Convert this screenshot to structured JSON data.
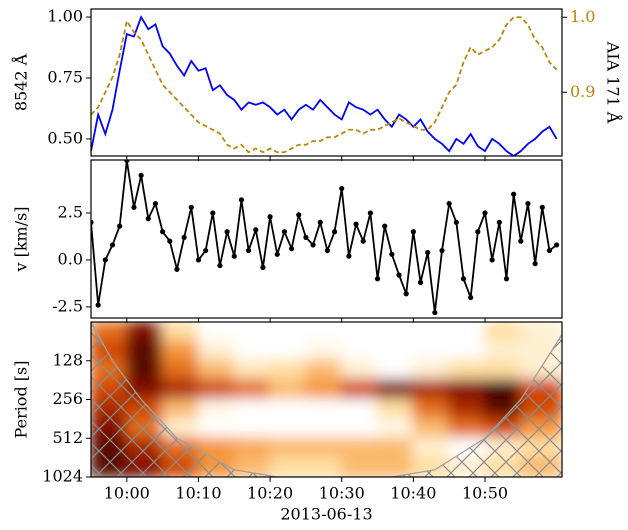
{
  "chart_data": [
    {
      "type": "line",
      "xlim": [
        "09:55:00",
        "11:00:45"
      ],
      "ylim": [
        0.43,
        1.033
      ],
      "yticks": [
        {
          "value": 1.0,
          "label": "1.00"
        },
        {
          "value": 0.75,
          "label": "0.75"
        },
        {
          "value": 0.5,
          "label": "0.50"
        }
      ],
      "y2lim": [
        0.815,
        1.011
      ],
      "y2ticks": [
        {
          "value": 1.0,
          "label": "1.0"
        },
        0.9
      ],
      "ylabel": "8542 Å",
      "y2label": "AIA 171 Å",
      "x": [
        "09:55",
        "09:56",
        "09:57",
        "09:58",
        "09:59",
        "10:00",
        "10:01",
        "10:02",
        "10:03",
        "10:04",
        "10:05",
        "10:06",
        "10:07",
        "10:08",
        "10:09",
        "10:10",
        "10:11",
        "10:12",
        "10:13",
        "10:14",
        "10:15",
        "10:16",
        "10:17",
        "10:18",
        "10:19",
        "10:20",
        "10:21",
        "10:22",
        "10:23",
        "10:24",
        "10:25",
        "10:26",
        "10:27",
        "10:28",
        "10:29",
        "10:30",
        "10:31",
        "10:32",
        "10:33",
        "10:34",
        "10:35",
        "10:36",
        "10:37",
        "10:38",
        "10:39",
        "10:40",
        "10:41",
        "10:42",
        "10:43",
        "10:44",
        "10:45",
        "10:46",
        "10:47",
        "10:48",
        "10:49",
        "10:50",
        "10:51",
        "10:52",
        "10:53",
        "10:54",
        "10:55",
        "10:56",
        "10:57",
        "10:58",
        "10:59",
        "11:00"
      ],
      "series": [
        {
          "color": "#0000ff",
          "linestyle": "solid",
          "values": [
            0.45,
            0.6,
            0.52,
            0.62,
            0.78,
            0.93,
            0.92,
            1.0,
            0.95,
            0.97,
            0.88,
            0.85,
            0.8,
            0.76,
            0.82,
            0.78,
            0.79,
            0.7,
            0.72,
            0.68,
            0.66,
            0.62,
            0.65,
            0.64,
            0.65,
            0.63,
            0.6,
            0.62,
            0.58,
            0.62,
            0.64,
            0.62,
            0.66,
            0.63,
            0.6,
            0.58,
            0.65,
            0.63,
            0.62,
            0.6,
            0.62,
            0.58,
            0.55,
            0.6,
            0.58,
            0.55,
            0.58,
            0.53,
            0.5,
            0.48,
            0.45,
            0.5,
            0.48,
            0.52,
            0.47,
            0.45,
            0.5,
            0.48,
            0.45,
            0.43,
            0.45,
            0.48,
            0.5,
            0.53,
            0.55,
            0.5
          ]
        },
        {
          "color": "#b8860b",
          "linestyle": "dashed",
          "axis": "y2",
          "values": [
            0.87,
            0.88,
            0.9,
            0.92,
            0.95,
            0.995,
            0.98,
            0.97,
            0.95,
            0.93,
            0.91,
            0.9,
            0.89,
            0.88,
            0.87,
            0.86,
            0.855,
            0.85,
            0.845,
            0.83,
            0.825,
            0.83,
            0.82,
            0.825,
            0.82,
            0.825,
            0.82,
            0.82,
            0.825,
            0.83,
            0.83,
            0.835,
            0.835,
            0.84,
            0.84,
            0.845,
            0.85,
            0.85,
            0.845,
            0.85,
            0.85,
            0.855,
            0.86,
            0.865,
            0.86,
            0.855,
            0.85,
            0.85,
            0.86,
            0.88,
            0.9,
            0.91,
            0.94,
            0.96,
            0.95,
            0.955,
            0.96,
            0.97,
            0.99,
            1.0,
            1.0,
            0.99,
            0.97,
            0.96,
            0.94,
            0.93
          ]
        }
      ]
    },
    {
      "type": "line",
      "markers": true,
      "xlim": [
        "09:55:00",
        "11:00:45"
      ],
      "ylim": [
        -3.09,
        5.32
      ],
      "yticks": [
        2.5,
        {
          "value": 0,
          "label": "0.0"
        },
        -2.5
      ],
      "ylabel": "v [km/s]",
      "x": [
        "09:55",
        "09:56",
        "09:57",
        "09:58",
        "09:59",
        "10:00",
        "10:01",
        "10:02",
        "10:03",
        "10:04",
        "10:05",
        "10:06",
        "10:07",
        "10:08",
        "10:09",
        "10:10",
        "10:11",
        "10:12",
        "10:13",
        "10:14",
        "10:15",
        "10:16",
        "10:17",
        "10:18",
        "10:19",
        "10:20",
        "10:21",
        "10:22",
        "10:23",
        "10:24",
        "10:25",
        "10:26",
        "10:27",
        "10:28",
        "10:29",
        "10:30",
        "10:31",
        "10:32",
        "10:33",
        "10:34",
        "10:35",
        "10:36",
        "10:37",
        "10:38",
        "10:39",
        "10:40",
        "10:41",
        "10:42",
        "10:43",
        "10:44",
        "10:45",
        "10:46",
        "10:47",
        "10:48",
        "10:49",
        "10:50",
        "10:51",
        "10:52",
        "10:53",
        "10:54",
        "10:55",
        "10:56",
        "10:57",
        "10:58",
        "10:59",
        "11:00"
      ],
      "series": [
        {
          "color": "#000000",
          "linestyle": "solid",
          "values": [
            2.0,
            -2.4,
            0.0,
            0.8,
            1.8,
            5.3,
            2.8,
            4.5,
            2.2,
            3.0,
            1.5,
            1.0,
            -0.5,
            1.2,
            2.8,
            0.0,
            0.5,
            2.5,
            -0.3,
            1.5,
            0.2,
            3.2,
            0.5,
            1.6,
            -0.4,
            2.3,
            0.3,
            1.5,
            0.6,
            2.4,
            1.2,
            0.8,
            2.0,
            0.5,
            1.5,
            3.8,
            0.2,
            1.9,
            1.0,
            2.5,
            -1.0,
            1.8,
            0.3,
            -0.8,
            -1.8,
            1.5,
            -1.2,
            0.4,
            -2.8,
            0.5,
            3.0,
            2.0,
            -1.0,
            -2.0,
            1.5,
            2.5,
            0.0,
            2.0,
            -1.0,
            3.5,
            1.0,
            3.0,
            -0.2,
            2.8,
            0.5,
            0.8
          ]
        }
      ]
    },
    {
      "type": "heatmap",
      "xlim": [
        "09:55:00",
        "11:00:45"
      ],
      "xticks": [
        "10:00",
        "10:10",
        "10:20",
        "10:30",
        "10:40",
        "10:50"
      ],
      "xlabel": "2013-06-13",
      "ylim": [
        64,
        1024
      ],
      "yscale": "log",
      "invert_y": true,
      "yticks": [
        128,
        256,
        512,
        1024
      ],
      "ylabel": "Period [s]",
      "x_edges": [
        "09:55",
        "10:00",
        "10:05",
        "10:10",
        "10:15",
        "10:20",
        "10:25",
        "10:30",
        "10:35",
        "10:40",
        "10:45",
        "10:50",
        "10:55",
        "11:00:45"
      ],
      "y_edges": [
        64,
        91,
        128,
        181,
        256,
        362,
        512,
        724,
        1024
      ],
      "values": [
        [
          0.5,
          0.8,
          0.2,
          0,
          0,
          0,
          0,
          0,
          0,
          0,
          0,
          0.2,
          0.1
        ],
        [
          0.6,
          0.9,
          0.4,
          0.1,
          0,
          0,
          0.05,
          0,
          0,
          0,
          0,
          0.1,
          0.1
        ],
        [
          0.5,
          0.9,
          0.5,
          0.3,
          0.15,
          0.2,
          0.3,
          0.1,
          0,
          0.1,
          0.2,
          0.2,
          0.1
        ],
        [
          0.6,
          0.8,
          0.7,
          0.6,
          0.5,
          0.3,
          0.4,
          0.6,
          0.8,
          0.7,
          0.8,
          0.95,
          0.6
        ],
        [
          0.7,
          0.6,
          0.3,
          0.05,
          0,
          0,
          0,
          0,
          0.2,
          0.5,
          0.7,
          0.9,
          0.6
        ],
        [
          0.8,
          0.5,
          0.1,
          0,
          0,
          0,
          0,
          0,
          0.05,
          0.3,
          0.5,
          0.6,
          0.4
        ],
        [
          0.9,
          0.7,
          0.5,
          0.4,
          0.35,
          0.3,
          0.3,
          0.3,
          0.3,
          0.1,
          0,
          0.1,
          0.2
        ],
        [
          0.9,
          0.8,
          0.6,
          0.4,
          0.3,
          0.2,
          0.2,
          0.3,
          0.3,
          0.2,
          0.1,
          0.2,
          0.3
        ]
      ],
      "coi": {
        "x": [
          "09:55",
          "09:58",
          "10:02",
          "10:07",
          "10:15",
          "10:21",
          "10:37",
          "10:43",
          "10:50",
          "10:55",
          "11:00:45"
        ],
        "period": [
          64,
          128,
          256,
          512,
          900,
          1024,
          1024,
          900,
          512,
          256,
          80
        ]
      }
    }
  ]
}
